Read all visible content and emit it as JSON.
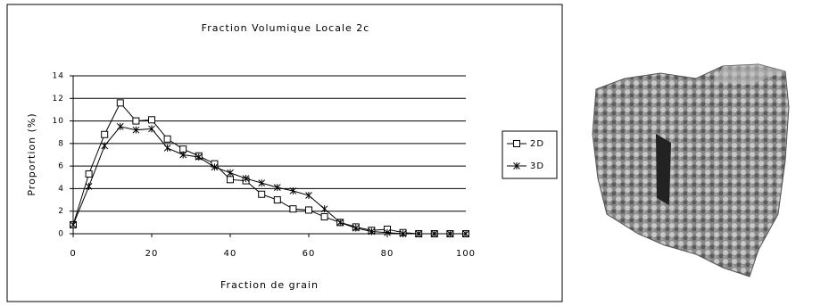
{
  "chart_data": {
    "type": "line",
    "title": "Fraction Volumique Locale 2c",
    "x_label": "Fraction de grain",
    "y_label": "Proportion (%)",
    "x": [
      0,
      4,
      8,
      12,
      16,
      20,
      24,
      28,
      32,
      36,
      40,
      44,
      48,
      52,
      56,
      60,
      64,
      68,
      72,
      76,
      80,
      84,
      88,
      92,
      96,
      100
    ],
    "series": [
      {
        "name": "2D",
        "color": "#000000",
        "marker": "square",
        "values": [
          0.8,
          5.3,
          8.8,
          11.6,
          10.0,
          10.1,
          8.4,
          7.5,
          6.9,
          6.2,
          4.8,
          4.7,
          3.5,
          3.0,
          2.2,
          2.1,
          1.5,
          1.0,
          0.6,
          0.3,
          0.4,
          0.1,
          0,
          0,
          0,
          0
        ]
      },
      {
        "name": "3D",
        "color": "#000000",
        "marker": "star",
        "values": [
          0.8,
          4.2,
          7.8,
          9.5,
          9.2,
          9.3,
          7.6,
          7.0,
          6.8,
          5.9,
          5.4,
          4.9,
          4.5,
          4.1,
          3.8,
          3.4,
          2.2,
          1.0,
          0.5,
          0.2,
          0.1,
          0,
          0,
          0,
          0,
          0
        ]
      }
    ],
    "xlim": [
      0,
      100
    ],
    "xticks": [
      0,
      20,
      40,
      60,
      80,
      100
    ],
    "ylim": [
      0,
      14
    ],
    "yticks": [
      0,
      2,
      4,
      6,
      8,
      10,
      12,
      14
    ],
    "grid": true,
    "legend": "right"
  }
}
